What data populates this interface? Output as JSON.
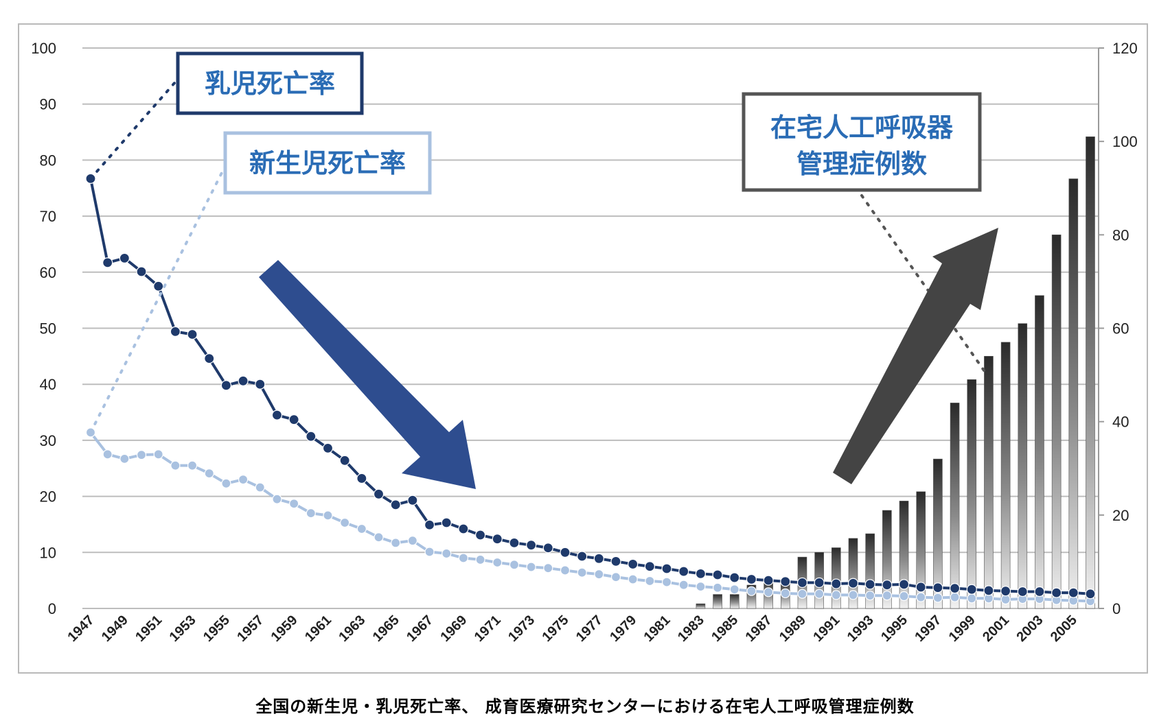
{
  "caption": "全国の新生児・乳児死亡率、 成育医療研究センターにおける在宅人工呼吸管理症例数",
  "callouts": {
    "infant": "乳児死亡率",
    "neonatal": "新生児死亡率",
    "ventilator_line1": "在宅人工呼吸器",
    "ventilator_line2": "管理症例数"
  },
  "colors": {
    "infant": "#1f3a6b",
    "neonatal": "#a9c1e0",
    "bars": "#3a3a3a",
    "arrow_down": "#2e4d8f",
    "arrow_up": "#444444",
    "callout_text": "#2a6cb5"
  },
  "chart_data": {
    "type": "line",
    "x": [
      1947,
      1948,
      1949,
      1950,
      1951,
      1952,
      1953,
      1954,
      1955,
      1956,
      1957,
      1958,
      1959,
      1960,
      1961,
      1962,
      1963,
      1964,
      1965,
      1966,
      1967,
      1968,
      1969,
      1970,
      1971,
      1972,
      1973,
      1974,
      1975,
      1976,
      1977,
      1978,
      1979,
      1980,
      1981,
      1982,
      1983,
      1984,
      1985,
      1986,
      1987,
      1988,
      1989,
      1990,
      1991,
      1992,
      1993,
      1994,
      1995,
      1996,
      1997,
      1998,
      1999,
      2000,
      2001,
      2002,
      2003,
      2004,
      2005,
      2006
    ],
    "x_tick_labels": [
      "1947",
      "1949",
      "1951",
      "1953",
      "1955",
      "1957",
      "1959",
      "1961",
      "1963",
      "1965",
      "1967",
      "1969",
      "1971",
      "1973",
      "1975",
      "1977",
      "1979",
      "1981",
      "1983",
      "1985",
      "1987",
      "1989",
      "1991",
      "1993",
      "1995",
      "1997",
      "1999",
      "2001",
      "2003",
      "2005"
    ],
    "y_left": {
      "ylim": [
        0,
        100
      ],
      "ticks": [
        "0",
        "10",
        "20",
        "30",
        "40",
        "50",
        "60",
        "70",
        "80",
        "90",
        "100"
      ]
    },
    "y_right": {
      "ylim": [
        0,
        120
      ],
      "ticks": [
        "0",
        "20",
        "40",
        "60",
        "80",
        "100",
        "120"
      ]
    },
    "grid": true,
    "series": [
      {
        "name": "乳児死亡率",
        "type": "line",
        "axis": "left",
        "values": [
          76.7,
          61.7,
          62.5,
          60.1,
          57.5,
          49.4,
          48.9,
          44.6,
          39.8,
          40.6,
          40.0,
          34.5,
          33.7,
          30.7,
          28.6,
          26.4,
          23.2,
          20.4,
          18.5,
          19.3,
          14.9,
          15.3,
          14.2,
          13.1,
          12.4,
          11.7,
          11.3,
          10.8,
          10.0,
          9.3,
          8.9,
          8.4,
          7.9,
          7.5,
          7.1,
          6.6,
          6.2,
          6.0,
          5.5,
          5.2,
          5.0,
          4.8,
          4.6,
          4.6,
          4.4,
          4.5,
          4.3,
          4.2,
          4.3,
          3.8,
          3.7,
          3.6,
          3.4,
          3.2,
          3.1,
          3.0,
          3.0,
          2.8,
          2.8,
          2.6
        ]
      },
      {
        "name": "新生児死亡率",
        "type": "line",
        "axis": "left",
        "values": [
          31.4,
          27.5,
          26.7,
          27.4,
          27.5,
          25.5,
          25.5,
          24.1,
          22.3,
          23.0,
          21.6,
          19.5,
          18.7,
          17.0,
          16.6,
          15.3,
          14.2,
          12.7,
          11.7,
          12.1,
          10.1,
          9.8,
          9.0,
          8.7,
          8.2,
          7.8,
          7.4,
          7.2,
          6.8,
          6.4,
          6.1,
          5.6,
          5.2,
          4.9,
          4.7,
          4.2,
          3.9,
          3.7,
          3.4,
          3.1,
          2.9,
          2.7,
          2.6,
          2.6,
          2.4,
          2.4,
          2.3,
          2.3,
          2.2,
          2.0,
          1.9,
          2.0,
          1.8,
          1.8,
          1.6,
          1.7,
          1.7,
          1.5,
          1.4,
          1.3
        ]
      },
      {
        "name": "在宅人工呼吸器管理症例数",
        "type": "bar",
        "axis": "right",
        "values": [
          0,
          0,
          0,
          0,
          0,
          0,
          0,
          0,
          0,
          0,
          0,
          0,
          0,
          0,
          0,
          0,
          0,
          0,
          0,
          0,
          0,
          0,
          0,
          0,
          0,
          0,
          0,
          0,
          0,
          0,
          0,
          0,
          0,
          0,
          0,
          0,
          1,
          3,
          3,
          5,
          6,
          6,
          11,
          12,
          13,
          15,
          16,
          21,
          23,
          25,
          32,
          44,
          49,
          54,
          57,
          61,
          67,
          80,
          92,
          101
        ]
      }
    ]
  }
}
